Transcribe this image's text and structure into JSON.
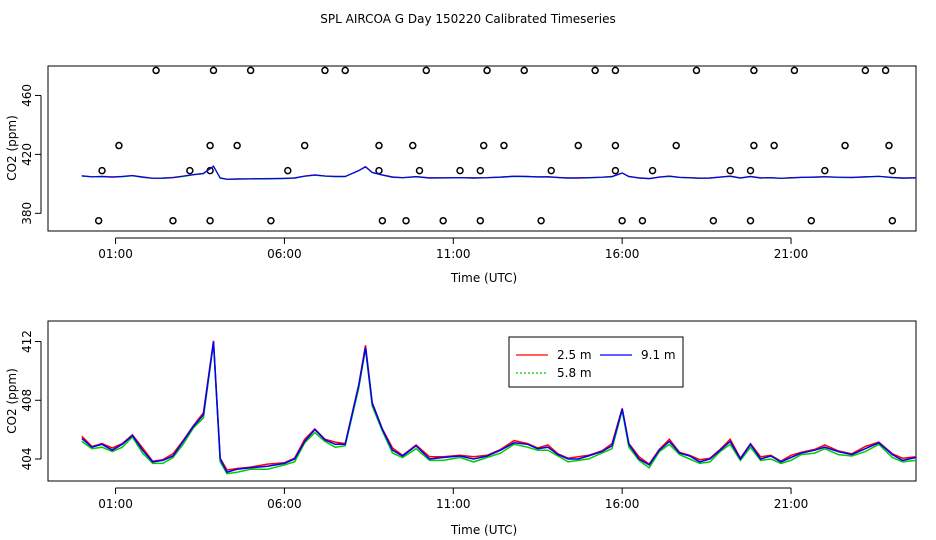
{
  "page_title": "SPL AIRCOA G  Day 150220  Calibrated Timeseries",
  "colors": {
    "s1": "#ff0000",
    "s2": "#00cc00",
    "s3": "#0000ff",
    "axis": "#000000"
  },
  "chart_data": [
    {
      "type": "scatter+line",
      "title": "SPL AIRCOA G  Day 150220  Calibrated Timeseries",
      "xlabel": "Time (UTC)",
      "ylabel": "CO2 (ppm)",
      "xlim": [
        -1.0,
        24.7
      ],
      "ylim": [
        368,
        480
      ],
      "x_ticks": [
        1,
        6,
        11,
        16,
        21
      ],
      "x_tick_labels": [
        "01:00",
        "06:00",
        "11:00",
        "16:00",
        "21:00"
      ],
      "y_ticks": [
        380,
        420,
        460
      ],
      "y_tick_labels": [
        "380",
        "420",
        "460"
      ],
      "calibration_points": [
        [
          0.5,
          375
        ],
        [
          2.7,
          375
        ],
        [
          3.8,
          375
        ],
        [
          5.6,
          375
        ],
        [
          8.9,
          375
        ],
        [
          9.6,
          375
        ],
        [
          10.7,
          375
        ],
        [
          11.8,
          375
        ],
        [
          13.6,
          375
        ],
        [
          16.0,
          375
        ],
        [
          16.6,
          375
        ],
        [
          18.7,
          375
        ],
        [
          19.8,
          375
        ],
        [
          21.6,
          375
        ],
        [
          24.0,
          375
        ],
        [
          1.1,
          426
        ],
        [
          4.6,
          426
        ],
        [
          6.6,
          426
        ],
        [
          8.8,
          426
        ],
        [
          9.8,
          426
        ],
        [
          11.9,
          426
        ],
        [
          12.5,
          426
        ],
        [
          14.7,
          426
        ],
        [
          15.8,
          426
        ],
        [
          17.6,
          426
        ],
        [
          19.9,
          426
        ],
        [
          20.5,
          426
        ],
        [
          22.6,
          426
        ],
        [
          23.9,
          426
        ],
        [
          3.8,
          426
        ],
        [
          0.6,
          409
        ],
        [
          3.2,
          409
        ],
        [
          3.8,
          409
        ],
        [
          6.1,
          409
        ],
        [
          8.8,
          409
        ],
        [
          10.0,
          409
        ],
        [
          11.2,
          409
        ],
        [
          11.8,
          409
        ],
        [
          13.9,
          409
        ],
        [
          15.8,
          409
        ],
        [
          16.9,
          409
        ],
        [
          19.2,
          409
        ],
        [
          19.8,
          409
        ],
        [
          22.0,
          409
        ],
        [
          24.0,
          409
        ],
        [
          2.2,
          477
        ],
        [
          3.9,
          477
        ],
        [
          5.0,
          477
        ],
        [
          7.2,
          477
        ],
        [
          7.8,
          477
        ],
        [
          10.2,
          477
        ],
        [
          12.0,
          477
        ],
        [
          13.1,
          477
        ],
        [
          15.2,
          477
        ],
        [
          15.8,
          477
        ],
        [
          18.2,
          477
        ],
        [
          19.9,
          477
        ],
        [
          21.1,
          477
        ],
        [
          23.2,
          477
        ],
        [
          23.8,
          477
        ]
      ],
      "series": [
        {
          "name": "2.5 m",
          "color": "#ff0000"
        },
        {
          "name": "5.8 m",
          "color": "#00cc00"
        },
        {
          "name": "9.1 m",
          "color": "#0000ff"
        }
      ]
    },
    {
      "type": "line",
      "xlabel": "Time (UTC)",
      "ylabel": "CO2 (ppm)",
      "xlim": [
        -1.0,
        24.7
      ],
      "ylim": [
        402.5,
        413.4
      ],
      "x_ticks": [
        1,
        6,
        11,
        16,
        21
      ],
      "x_tick_labels": [
        "01:00",
        "06:00",
        "11:00",
        "16:00",
        "21:00"
      ],
      "y_ticks": [
        404,
        408,
        412
      ],
      "y_tick_labels": [
        "404",
        "408",
        "412"
      ],
      "legend_position": "top-center",
      "legend_entries": [
        "2.5 m",
        "5.8 m",
        "9.1 m"
      ],
      "series": [
        {
          "name": "2.5 m",
          "color": "#ff0000"
        },
        {
          "name": "5.8 m",
          "color": "#00cc00"
        },
        {
          "name": "9.1 m",
          "color": "#0000ff"
        }
      ],
      "base_profile": [
        [
          0.0,
          405.4
        ],
        [
          0.3,
          404.8
        ],
        [
          0.6,
          405.0
        ],
        [
          0.9,
          404.6
        ],
        [
          1.2,
          405.0
        ],
        [
          1.5,
          405.6
        ],
        [
          1.8,
          404.6
        ],
        [
          2.1,
          403.8
        ],
        [
          2.4,
          403.9
        ],
        [
          2.7,
          404.2
        ],
        [
          3.0,
          405.2
        ],
        [
          3.3,
          406.2
        ],
        [
          3.6,
          407.0
        ],
        [
          3.9,
          412.0
        ],
        [
          4.1,
          404.0
        ],
        [
          4.3,
          403.1
        ],
        [
          4.6,
          403.3
        ],
        [
          5.0,
          403.4
        ],
        [
          5.5,
          403.5
        ],
        [
          6.0,
          403.7
        ],
        [
          6.3,
          404.0
        ],
        [
          6.6,
          405.2
        ],
        [
          6.9,
          406.0
        ],
        [
          7.2,
          405.3
        ],
        [
          7.5,
          405.0
        ],
        [
          7.8,
          405.0
        ],
        [
          8.2,
          409.0
        ],
        [
          8.4,
          411.6
        ],
        [
          8.6,
          407.8
        ],
        [
          8.9,
          406.0
        ],
        [
          9.2,
          404.6
        ],
        [
          9.5,
          404.2
        ],
        [
          9.9,
          404.9
        ],
        [
          10.3,
          404.0
        ],
        [
          10.7,
          404.1
        ],
        [
          11.2,
          404.2
        ],
        [
          11.6,
          404.0
        ],
        [
          12.0,
          404.2
        ],
        [
          12.4,
          404.6
        ],
        [
          12.8,
          405.1
        ],
        [
          13.2,
          405.0
        ],
        [
          13.5,
          404.7
        ],
        [
          13.8,
          404.8
        ],
        [
          14.1,
          404.3
        ],
        [
          14.4,
          404.0
        ],
        [
          14.7,
          404.0
        ],
        [
          15.0,
          404.2
        ],
        [
          15.4,
          404.5
        ],
        [
          15.7,
          404.9
        ],
        [
          16.0,
          407.4
        ],
        [
          16.2,
          405.0
        ],
        [
          16.5,
          404.0
        ],
        [
          16.8,
          403.6
        ],
        [
          17.1,
          404.6
        ],
        [
          17.4,
          405.2
        ],
        [
          17.7,
          404.4
        ],
        [
          18.0,
          404.2
        ],
        [
          18.3,
          403.8
        ],
        [
          18.6,
          404.0
        ],
        [
          18.9,
          404.6
        ],
        [
          19.2,
          405.2
        ],
        [
          19.5,
          404.0
        ],
        [
          19.8,
          405.0
        ],
        [
          20.1,
          404.0
        ],
        [
          20.4,
          404.2
        ],
        [
          20.7,
          403.8
        ],
        [
          21.0,
          404.1
        ],
        [
          21.3,
          404.4
        ],
        [
          21.7,
          404.6
        ],
        [
          22.0,
          404.8
        ],
        [
          22.4,
          404.5
        ],
        [
          22.8,
          404.3
        ],
        [
          23.2,
          404.7
        ],
        [
          23.6,
          405.1
        ],
        [
          24.0,
          404.3
        ],
        [
          24.3,
          403.9
        ],
        [
          24.7,
          404.1
        ]
      ]
    }
  ]
}
